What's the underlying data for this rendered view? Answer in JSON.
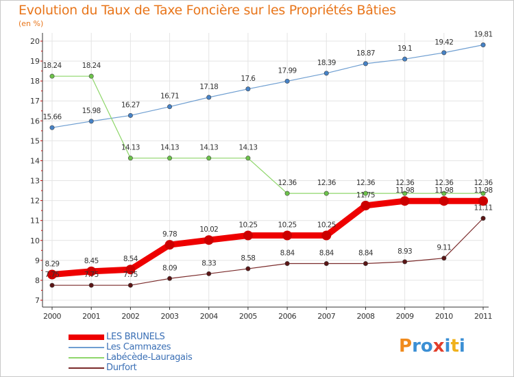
{
  "title": "Evolution du Taux de Taxe Foncière sur les Propriétés Bâties",
  "subtitle": "(en %)",
  "colors": {
    "title": "#e8751a",
    "axis": "#333333",
    "grid": "#e4e4e4",
    "legend_text": "#3a6fb5"
  },
  "logo": {
    "text": "Proxiti",
    "letters": [
      {
        "char": "P",
        "color": "#f08a1c"
      },
      {
        "char": "r",
        "color": "#3b8fd4"
      },
      {
        "char": "o",
        "color": "#3b8fd4"
      },
      {
        "char": "x",
        "color": "#e23d2a"
      },
      {
        "char": "i",
        "color": "#3b8fd4"
      },
      {
        "char": "t",
        "color": "#f0b11c"
      },
      {
        "char": "i",
        "color": "#3b8fd4"
      }
    ]
  },
  "chart_data": {
    "type": "line",
    "title": "Evolution du Taux de Taxe Foncière sur les Propriétés Bâties",
    "ylabel": "(en %)",
    "xlabel": "",
    "x": [
      "2000",
      "2001",
      "2002",
      "2003",
      "2004",
      "2005",
      "2006",
      "2007",
      "2008",
      "2009",
      "2010",
      "2011"
    ],
    "ylim": [
      7,
      20
    ],
    "yticks": [
      "7",
      "8",
      "9",
      "10",
      "11",
      "12",
      "13",
      "14",
      "15",
      "16",
      "17",
      "18",
      "19",
      "20"
    ],
    "grid": true,
    "legend_position": "bottom-left",
    "series": [
      {
        "name": "LES BRUNELS",
        "color": "#ee0000",
        "marker_color": "#cc0000",
        "style": "thick",
        "values": [
          8.29,
          8.45,
          8.54,
          9.78,
          10.02,
          10.25,
          10.25,
          10.25,
          11.75,
          11.98,
          11.98,
          11.98
        ],
        "labels": [
          "8.29",
          "8.45",
          "8.54",
          "9.78",
          "10.02",
          "10.25",
          "10.25",
          "10.25",
          "11.75",
          "11.98",
          "11.98",
          "11.98"
        ]
      },
      {
        "name": "Les Cammazes",
        "color": "#6e9ed1",
        "marker_color": "#4682c6",
        "style": "thin",
        "values": [
          15.66,
          15.98,
          16.27,
          16.71,
          17.18,
          17.6,
          17.99,
          18.39,
          18.87,
          19.1,
          19.42,
          19.81
        ],
        "labels": [
          "15.66",
          "15.98",
          "16.27",
          "16.71",
          "17.18",
          "17.6",
          "17.99",
          "18.39",
          "18.87",
          "19.1",
          "19.42",
          "19.81"
        ]
      },
      {
        "name": "Labécède-Lauragais",
        "color": "#8ed66a",
        "marker_color": "#6cc24a",
        "style": "thin",
        "values": [
          18.24,
          18.24,
          14.13,
          14.13,
          14.13,
          14.13,
          12.36,
          12.36,
          12.36,
          12.36,
          12.36,
          12.36
        ],
        "labels": [
          "18.24",
          "18.24",
          "14.13",
          "14.13",
          "14.13",
          "14.13",
          "12.36",
          "12.36",
          "12.36",
          "12.36",
          "12.36",
          "12.36"
        ]
      },
      {
        "name": "Durfort",
        "color": "#7a2a2a",
        "marker_color": "#5a1515",
        "style": "thin",
        "values": [
          7.75,
          7.75,
          7.75,
          8.09,
          8.33,
          8.58,
          8.84,
          8.84,
          8.84,
          8.93,
          9.11,
          11.11
        ],
        "labels": [
          "7.75",
          "7.75",
          "7.75",
          "8.09",
          "8.33",
          "8.58",
          "8.84",
          "8.84",
          "8.84",
          "8.93",
          "9.11",
          "11.11"
        ]
      }
    ]
  }
}
